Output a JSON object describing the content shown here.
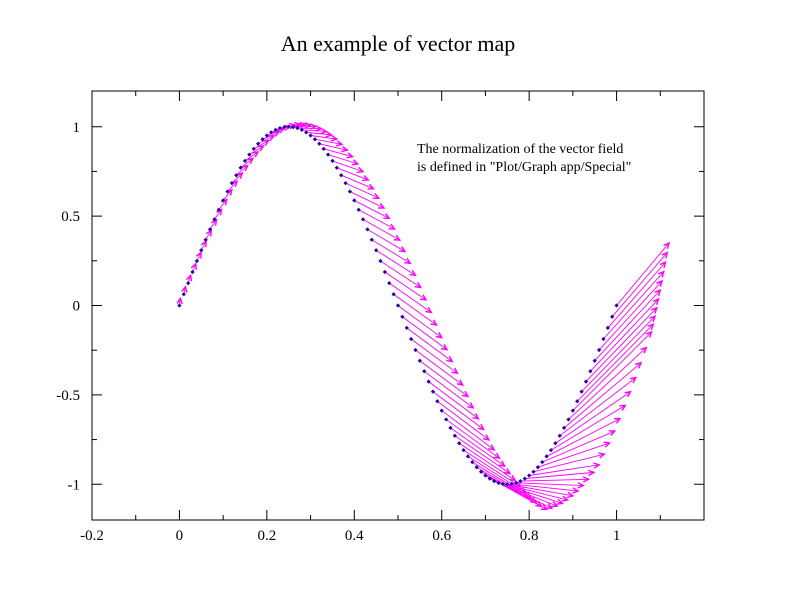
{
  "chart_data": {
    "type": "vector",
    "title": "An example of vector map",
    "xlabel": "",
    "ylabel": "",
    "xlim": [
      -0.2,
      1.2
    ],
    "ylim": [
      -1.2,
      1.2
    ],
    "x_ticks": [
      -0.2,
      0,
      0.2,
      0.4,
      0.6,
      0.8,
      1
    ],
    "x_tick_labels": [
      "-0.2",
      "0",
      "0.2",
      "0.4",
      "0.6",
      "0.8",
      "1"
    ],
    "y_ticks": [
      -1,
      -0.5,
      0,
      0.5,
      1
    ],
    "y_tick_labels": [
      "-1",
      "-0.5",
      "0",
      "0.5",
      "1"
    ],
    "grid": false,
    "annotation": [
      "The normalization of the vector field",
      "is defined in \"Plot/Graph app/Special\""
    ],
    "colors": {
      "vector": "#ff00ff",
      "point": "#2200aa",
      "axis": "#000000"
    },
    "field": {
      "description_function": "y = sin(2*pi*x), x from 0 to 1",
      "x_start": 0.0,
      "x_end": 1.0,
      "point_count": 101,
      "vectors": [
        {
          "x": 0.0,
          "dx": 0.002,
          "dy": 0.04
        },
        {
          "x": 0.1,
          "dx": 0.02,
          "dy": 0.06
        },
        {
          "x": 0.2,
          "dx": 0.04,
          "dy": 0.04
        },
        {
          "x": 0.3,
          "dx": 0.06,
          "dy": -0.02
        },
        {
          "x": 0.4,
          "dx": 0.08,
          "dy": -0.1
        },
        {
          "x": 0.5,
          "dx": 0.1,
          "dy": -0.18
        },
        {
          "x": 0.6,
          "dx": 0.12,
          "dy": -0.22
        },
        {
          "x": 0.7,
          "dx": 0.14,
          "dy": -0.19
        },
        {
          "x": 0.8,
          "dx": 0.16,
          "dy": 0.06
        },
        {
          "x": 0.9,
          "dx": 0.18,
          "dy": 0.44
        },
        {
          "x": 1.0,
          "dx": 0.12,
          "dy": 0.35
        }
      ]
    }
  }
}
